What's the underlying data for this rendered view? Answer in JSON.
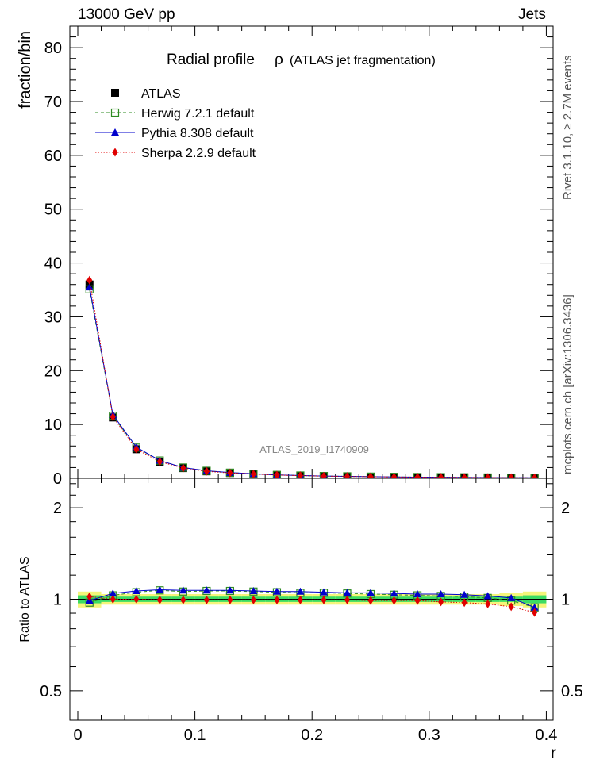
{
  "header": {
    "left": "13000 GeV pp",
    "right": "Jets"
  },
  "side_labels": {
    "rivet": "Rivet 3.1.10, ≥ 2.7M events",
    "mcplots": "mcplots.cern.ch [arXiv:1306.3436]"
  },
  "chart_data": [
    {
      "panel": "main",
      "type": "scatter",
      "title": "Radial profile",
      "title_symbol": "ρ",
      "subtitle": "(ATLAS jet fragmentation)",
      "watermark": "ATLAS_2019_I1740909",
      "xlabel": "",
      "ylabel": "fraction/bin",
      "xlim": [
        0,
        0.4
      ],
      "ylim": [
        0,
        84
      ],
      "yticks": [
        0,
        10,
        20,
        30,
        40,
        50,
        60,
        70,
        80
      ],
      "x": [
        0.01,
        0.03,
        0.05,
        0.07,
        0.09,
        0.11,
        0.13,
        0.15,
        0.17,
        0.19,
        0.21,
        0.23,
        0.25,
        0.27,
        0.29,
        0.31,
        0.33,
        0.35,
        0.37,
        0.39
      ],
      "legend_position": "top-left",
      "series": [
        {
          "name": "ATLAS",
          "color": "#000000",
          "marker": "square",
          "line": "none",
          "values": [
            36.0,
            11.3,
            5.4,
            3.1,
            1.9,
            1.3,
            1.0,
            0.8,
            0.6,
            0.5,
            0.4,
            0.35,
            0.3,
            0.25,
            0.22,
            0.2,
            0.17,
            0.15,
            0.13,
            0.12
          ]
        },
        {
          "name": "Herwig 7.2.1 default",
          "color": "#2e8b22",
          "marker": "open-square",
          "line": "dashed",
          "values": [
            35.1,
            11.6,
            5.7,
            3.3,
            2.0,
            1.4,
            1.05,
            0.85,
            0.63,
            0.52,
            0.42,
            0.37,
            0.31,
            0.26,
            0.23,
            0.21,
            0.175,
            0.152,
            0.13,
            0.113
          ]
        },
        {
          "name": "Pythia 8.308 default",
          "color": "#0000cc",
          "marker": "triangle",
          "line": "solid",
          "values": [
            35.5,
            11.8,
            5.8,
            3.3,
            2.0,
            1.4,
            1.06,
            0.85,
            0.63,
            0.53,
            0.42,
            0.37,
            0.31,
            0.26,
            0.23,
            0.21,
            0.175,
            0.153,
            0.131,
            0.113
          ]
        },
        {
          "name": "Sherpa 2.2.9 default",
          "color": "#e00000",
          "marker": "diamond",
          "line": "dotted",
          "values": [
            36.8,
            11.4,
            5.4,
            3.1,
            1.9,
            1.3,
            1.0,
            0.8,
            0.6,
            0.5,
            0.4,
            0.35,
            0.3,
            0.25,
            0.22,
            0.196,
            0.166,
            0.145,
            0.124,
            0.109
          ]
        }
      ]
    },
    {
      "panel": "ratio",
      "type": "line",
      "xlabel": "r",
      "ylabel": "Ratio to ATLAS",
      "xlim": [
        0,
        0.4
      ],
      "ylim": [
        0.4,
        2.5
      ],
      "yscale": "log",
      "yticks": [
        0.5,
        1,
        2
      ],
      "ytick_labels": [
        "0.5",
        "1",
        "2"
      ],
      "xticks": [
        0,
        0.1,
        0.2,
        0.3,
        0.4
      ],
      "xtick_labels": [
        "0",
        "0.1",
        "0.2",
        "0.3",
        "0.4"
      ],
      "x": [
        0.01,
        0.03,
        0.05,
        0.07,
        0.09,
        0.11,
        0.13,
        0.15,
        0.17,
        0.19,
        0.21,
        0.23,
        0.25,
        0.27,
        0.29,
        0.31,
        0.33,
        0.35,
        0.37,
        0.39
      ],
      "uncertainty_band": {
        "stat": [
          0.03,
          0.02,
          0.02,
          0.02,
          0.02,
          0.02,
          0.02,
          0.02,
          0.02,
          0.02,
          0.02,
          0.02,
          0.02,
          0.02,
          0.02,
          0.02,
          0.02,
          0.02,
          0.02,
          0.03
        ],
        "total": [
          0.06,
          0.04,
          0.04,
          0.04,
          0.04,
          0.04,
          0.04,
          0.04,
          0.04,
          0.04,
          0.04,
          0.04,
          0.04,
          0.04,
          0.04,
          0.04,
          0.04,
          0.04,
          0.05,
          0.06
        ],
        "stat_color": "#3cdc64",
        "total_color": "#f5f57a"
      },
      "series": [
        {
          "name": "Herwig 7.2.1 default",
          "color": "#2e8b22",
          "marker": "open-square",
          "line": "dashed",
          "values": [
            0.975,
            1.03,
            1.055,
            1.07,
            1.06,
            1.065,
            1.065,
            1.06,
            1.055,
            1.05,
            1.05,
            1.045,
            1.04,
            1.035,
            1.03,
            1.025,
            1.02,
            1.01,
            0.99,
            0.94
          ]
        },
        {
          "name": "Pythia 8.308 default",
          "color": "#0000cc",
          "marker": "triangle",
          "line": "solid",
          "values": [
            0.99,
            1.045,
            1.065,
            1.075,
            1.07,
            1.07,
            1.07,
            1.065,
            1.06,
            1.06,
            1.055,
            1.05,
            1.05,
            1.045,
            1.04,
            1.04,
            1.035,
            1.025,
            1.01,
            0.94
          ]
        },
        {
          "name": "Sherpa 2.2.9 default",
          "color": "#e00000",
          "marker": "diamond",
          "line": "dotted",
          "values": [
            1.02,
            1.0,
            1.0,
            0.995,
            0.995,
            0.995,
            0.995,
            0.995,
            0.995,
            0.995,
            0.995,
            0.995,
            0.99,
            0.99,
            0.99,
            0.98,
            0.975,
            0.965,
            0.945,
            0.905
          ]
        }
      ]
    }
  ]
}
